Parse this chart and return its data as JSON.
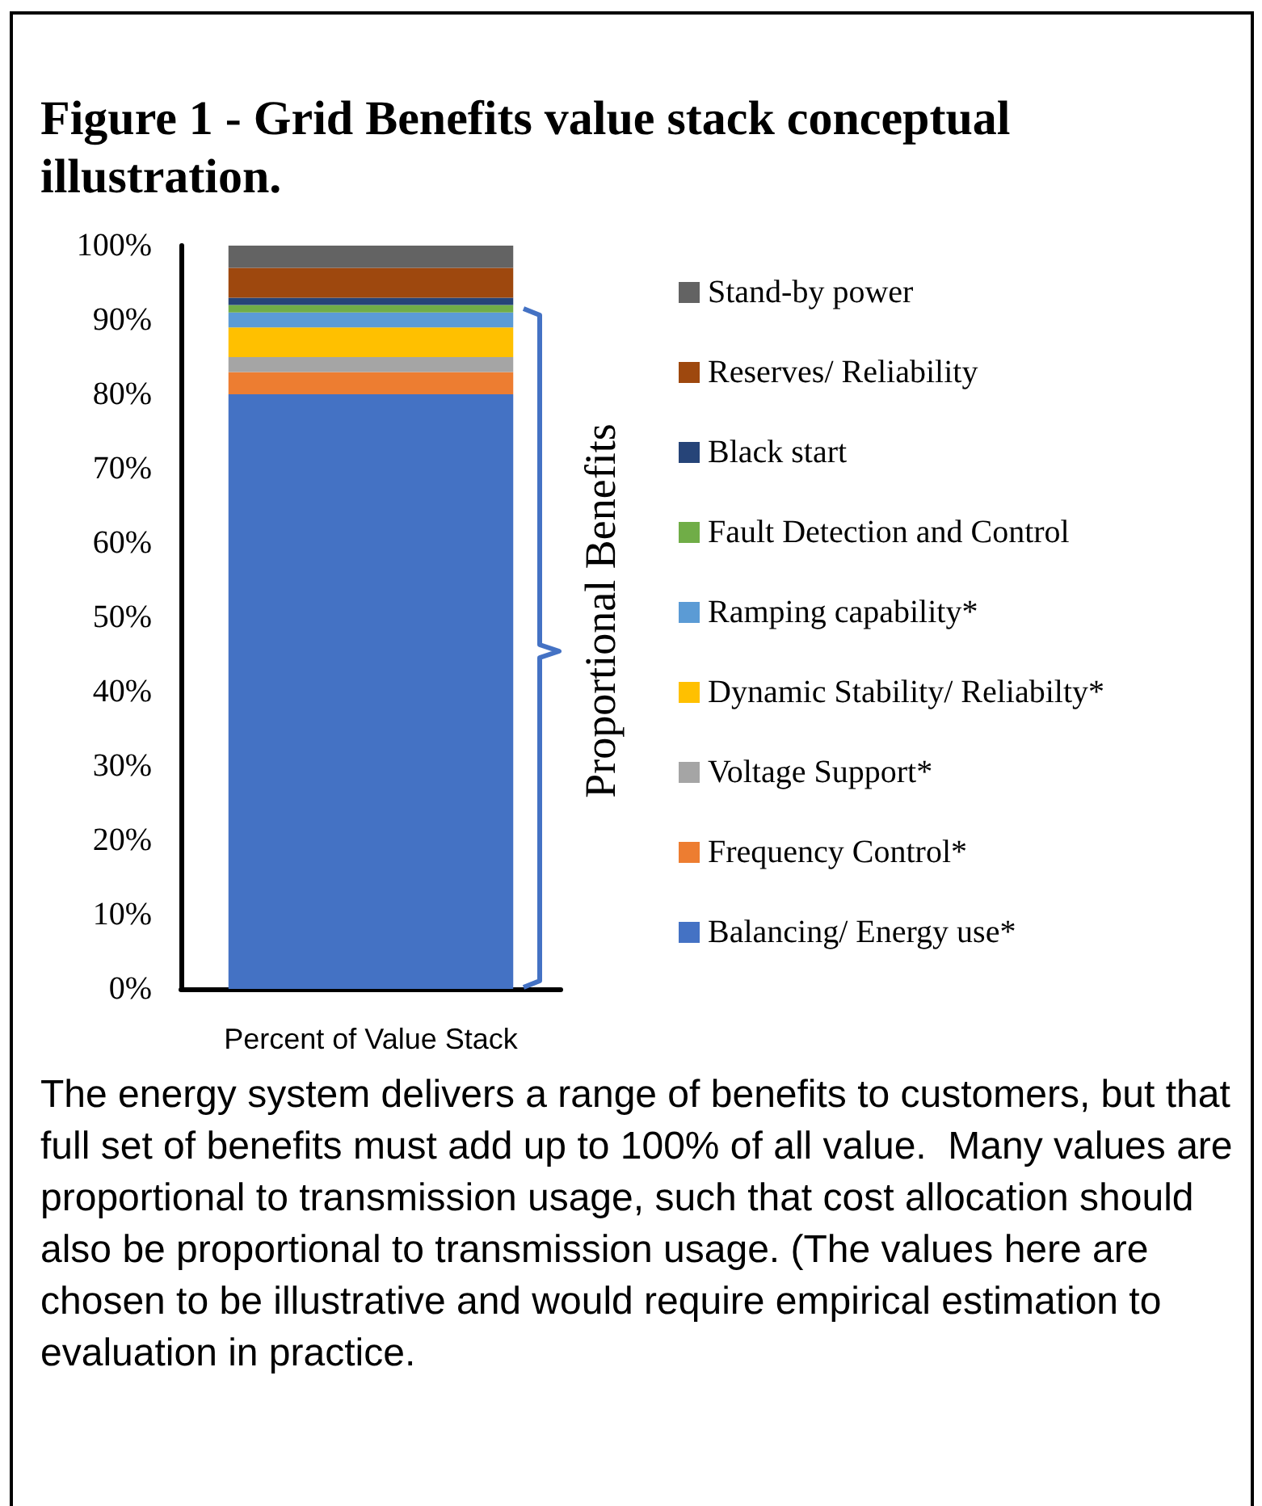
{
  "chart_data": {
    "type": "bar",
    "title": "Figure 1 - Grid Benefits value stack conceptual illustration.",
    "categories": [
      "Percent of Value Stack"
    ],
    "stacked": true,
    "series": [
      {
        "name": "Balancing/ Energy use*",
        "color": "#4472c4",
        "values": [
          80
        ]
      },
      {
        "name": "Frequency Control*",
        "color": "#ed7d31",
        "values": [
          3
        ]
      },
      {
        "name": "Voltage Support*",
        "color": "#a5a5a5",
        "values": [
          2
        ]
      },
      {
        "name": "Dynamic Stability/ Reliabilty*",
        "color": "#ffc000",
        "values": [
          4
        ]
      },
      {
        "name": "Ramping capability*",
        "color": "#5b9bd5",
        "values": [
          2
        ]
      },
      {
        "name": "Fault Detection and Control",
        "color": "#70ad47",
        "values": [
          1
        ]
      },
      {
        "name": "Black start",
        "color": "#264478",
        "values": [
          1
        ]
      },
      {
        "name": "Reserves/ Reliability",
        "color": "#9e480e",
        "values": [
          4
        ]
      },
      {
        "name": "Stand-by power",
        "color": "#636363",
        "values": [
          3
        ]
      }
    ],
    "ylim": [
      0,
      100
    ],
    "yticks": [
      {
        "value": 0,
        "label": "0%"
      },
      {
        "value": 10,
        "label": "10%"
      },
      {
        "value": 20,
        "label": "20%"
      },
      {
        "value": 30,
        "label": "30%"
      },
      {
        "value": 40,
        "label": "40%"
      },
      {
        "value": 50,
        "label": "50%"
      },
      {
        "value": 60,
        "label": "60%"
      },
      {
        "value": 70,
        "label": "70%"
      },
      {
        "value": 80,
        "label": "80%"
      },
      {
        "value": 90,
        "label": "90%"
      },
      {
        "value": 100,
        "label": "100%"
      }
    ],
    "grid": false,
    "legend": "right",
    "annotations": [
      "Proportional Benefits",
      "The energy system delivers a range of benefits to customers, but that full set of benefits must add up to 100% of all value.  Many values are proportional to transmission usage, such that cost allocation should also be proportional to transmission usage. (The values here are chosen to be illustrative and would require empirical estimation to evaluation in practice."
    ]
  }
}
